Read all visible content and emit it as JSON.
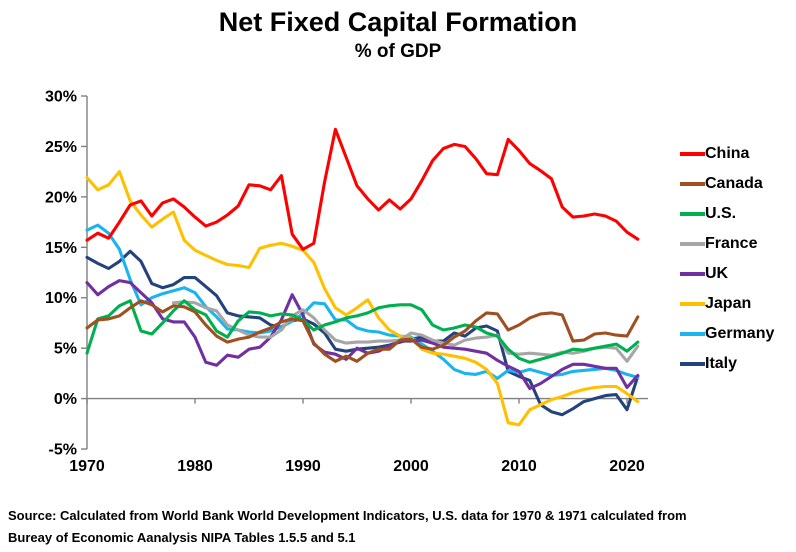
{
  "source": {
    "line1": "Source:  Calculated from World Bank World Development Indicators, U.S. data for 1970 & 1971 calculated from",
    "line2": "Bureay of Economic Aanalysis NIPA Tables 1.5.5 and 5.1"
  },
  "chart_data": {
    "type": "line",
    "title": "Net Fixed Capital Formation",
    "subtitle": "% of GDP",
    "xlabel": "",
    "ylabel": "",
    "x_start": 1970,
    "x_end": 2021,
    "xticks": [
      1970,
      1980,
      1990,
      2000,
      2010,
      2020
    ],
    "ytick_values": [
      30,
      25,
      20,
      15,
      10,
      5,
      0,
      -5
    ],
    "ytick_labels": [
      "30%",
      "25%",
      "20%",
      "15%",
      "10%",
      "5%",
      "0%",
      "-5%"
    ],
    "ylim": [
      -5,
      30
    ],
    "grid": "zero-baseline-only",
    "legend_position": "right",
    "axis_color": "#808080",
    "series": [
      {
        "name": "China",
        "color": "#FF0000",
        "values": [
          15.7,
          16.4,
          15.9,
          17.5,
          19.2,
          19.6,
          18.1,
          19.4,
          19.8,
          19.0,
          18.0,
          17.1,
          17.5,
          18.2,
          19.1,
          21.2,
          21.1,
          20.7,
          22.1,
          16.3,
          14.8,
          15.4,
          21.5,
          26.7,
          23.9,
          21.1,
          19.8,
          18.7,
          19.7,
          18.8,
          19.8,
          21.6,
          23.6,
          24.8,
          25.2,
          25.0,
          23.8,
          22.3,
          22.2,
          25.7,
          24.6,
          23.3,
          22.6,
          21.8,
          19.0,
          18.0,
          18.1,
          18.3,
          18.1,
          17.6,
          16.5,
          15.8
        ]
      },
      {
        "name": "Canada",
        "color": "#9E5021",
        "values": [
          7.0,
          7.8,
          7.9,
          8.2,
          9.0,
          9.7,
          9.3,
          8.6,
          9.2,
          9.1,
          8.6,
          7.3,
          6.2,
          5.6,
          5.9,
          6.1,
          6.6,
          7.0,
          7.6,
          7.9,
          7.7,
          5.5,
          4.4,
          3.7,
          4.2,
          3.7,
          4.5,
          4.9,
          4.9,
          5.8,
          5.9,
          5.1,
          4.9,
          5.3,
          6.1,
          6.7,
          7.7,
          8.5,
          8.4,
          6.8,
          7.3,
          8.0,
          8.4,
          8.5,
          8.3,
          5.7,
          5.8,
          6.4,
          6.5,
          6.3,
          6.2,
          8.1
        ]
      },
      {
        "name": "U.S.",
        "color": "#00B050",
        "values": [
          4.5,
          7.9,
          8.2,
          9.2,
          9.7,
          6.7,
          6.4,
          7.5,
          8.7,
          9.7,
          8.8,
          8.3,
          6.7,
          6.1,
          7.7,
          8.6,
          8.5,
          8.2,
          8.4,
          8.3,
          7.8,
          6.8,
          7.3,
          7.6,
          8.0,
          8.2,
          8.5,
          9.0,
          9.2,
          9.3,
          9.3,
          8.8,
          7.3,
          6.8,
          7.0,
          7.3,
          7.1,
          6.5,
          6.2,
          4.9,
          4.0,
          3.6,
          3.9,
          4.2,
          4.5,
          4.9,
          4.8,
          5.0,
          5.2,
          5.4,
          4.7,
          5.6
        ]
      },
      {
        "name": "France",
        "color": "#A6A6A6",
        "values": [
          null,
          null,
          null,
          null,
          null,
          null,
          null,
          null,
          9.5,
          9.6,
          9.5,
          9.0,
          8.7,
          7.3,
          6.8,
          6.3,
          6.1,
          6.1,
          6.8,
          8.2,
          8.8,
          8.0,
          6.8,
          5.8,
          5.5,
          5.6,
          5.6,
          5.7,
          5.7,
          5.8,
          6.5,
          6.3,
          5.8,
          5.5,
          5.3,
          5.8,
          6.0,
          6.1,
          6.3,
          4.5,
          4.4,
          4.5,
          4.4,
          4.3,
          4.6,
          4.5,
          4.7,
          5.0,
          5.1,
          5.0,
          3.7,
          5.2
        ]
      },
      {
        "name": "UK",
        "color": "#7030A0",
        "values": [
          11.5,
          10.3,
          11.1,
          11.7,
          11.5,
          10.5,
          9.5,
          7.9,
          7.6,
          7.6,
          6.1,
          3.6,
          3.3,
          4.3,
          4.1,
          4.9,
          5.1,
          6.1,
          7.8,
          10.3,
          8.3,
          5.4,
          4.6,
          4.4,
          3.9,
          5.0,
          4.5,
          4.7,
          5.2,
          5.7,
          5.7,
          5.8,
          5.5,
          5.1,
          5.0,
          4.9,
          4.7,
          4.5,
          3.8,
          3.2,
          2.7,
          1.0,
          1.5,
          2.2,
          2.9,
          3.4,
          3.4,
          3.2,
          3.0,
          3.0,
          1.1,
          2.3
        ]
      },
      {
        "name": "Japan",
        "color": "#FFC000",
        "values": [
          21.9,
          20.7,
          21.2,
          22.5,
          19.6,
          18.2,
          17.0,
          17.8,
          18.5,
          15.7,
          14.7,
          14.2,
          13.7,
          13.3,
          13.2,
          13.0,
          14.9,
          15.2,
          15.4,
          15.1,
          14.7,
          13.5,
          10.9,
          9.0,
          8.3,
          9.0,
          9.8,
          8.0,
          6.8,
          6.2,
          6.0,
          4.9,
          4.5,
          4.4,
          4.2,
          4.0,
          3.6,
          2.9,
          1.5,
          -2.4,
          -2.6,
          -1.1,
          -0.6,
          -0.1,
          0.2,
          0.6,
          0.9,
          1.1,
          1.2,
          1.2,
          0.5,
          -0.3
        ]
      },
      {
        "name": "Germany",
        "color": "#1CB4F0",
        "values": [
          16.7,
          17.2,
          16.4,
          14.8,
          11.8,
          9.3,
          10.0,
          10.4,
          10.7,
          11.0,
          10.5,
          9.1,
          8.1,
          6.9,
          6.8,
          6.6,
          6.5,
          6.7,
          7.1,
          7.7,
          8.4,
          9.5,
          9.4,
          7.8,
          7.8,
          7.0,
          6.7,
          6.6,
          6.3,
          6.2,
          6.1,
          5.4,
          4.7,
          3.9,
          2.9,
          2.5,
          2.4,
          2.7,
          2.0,
          2.8,
          2.6,
          2.9,
          2.6,
          2.3,
          2.4,
          2.7,
          2.8,
          2.9,
          3.0,
          2.8,
          2.4,
          2.1
        ]
      },
      {
        "name": "Italy",
        "color": "#24437C",
        "values": [
          14.0,
          13.4,
          12.9,
          13.6,
          14.6,
          13.6,
          11.4,
          11.0,
          11.3,
          12.0,
          12.0,
          11.1,
          10.2,
          8.5,
          8.2,
          8.1,
          8.0,
          7.3,
          7.1,
          7.7,
          7.9,
          7.4,
          6.5,
          4.9,
          4.7,
          4.9,
          5.0,
          5.1,
          5.3,
          5.6,
          5.9,
          6.1,
          5.7,
          5.7,
          6.5,
          6.2,
          7.0,
          7.2,
          6.7,
          2.7,
          2.2,
          1.8,
          -0.6,
          -1.3,
          -1.6,
          -1.0,
          -0.3,
          0.0,
          0.3,
          0.4,
          -1.1,
          2.2
        ]
      }
    ]
  }
}
